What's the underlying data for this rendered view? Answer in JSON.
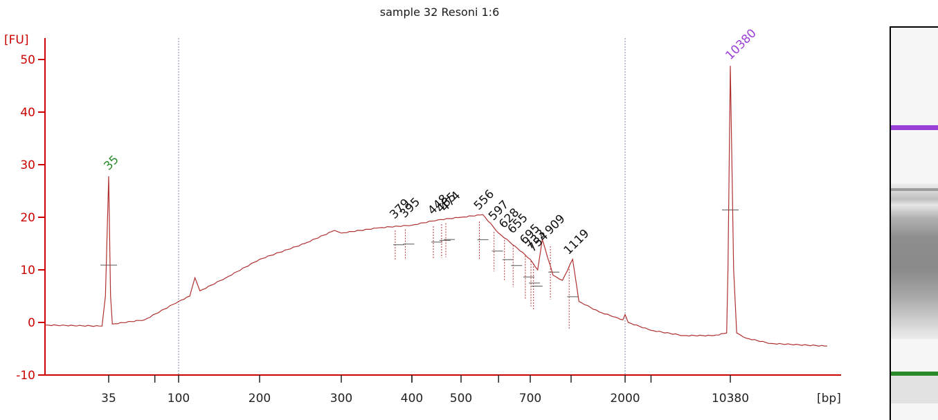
{
  "chart_data": {
    "type": "line",
    "title": "sample 32 Resoni 1:6",
    "ylabel": "[FU]",
    "xlabel": "[bp]",
    "ylim": [
      -10,
      55
    ],
    "yticks": [
      -10,
      0,
      10,
      20,
      30,
      40,
      50
    ],
    "xtick_labels": [
      "35",
      "100",
      "200",
      "300",
      "400",
      "500",
      "700",
      "2000",
      "10380"
    ],
    "colors": {
      "trace": "#b03030",
      "axis": "#cc0000",
      "lower_marker": "#2a8a2a",
      "upper_marker": "#9a3fd8",
      "peak_labels": "#111111"
    },
    "markers": [
      {
        "label": "35",
        "bp": 35,
        "fu": 27.8,
        "color": "#2a8a2a"
      },
      {
        "label": "10380",
        "bp": 10380,
        "fu": 48.8,
        "color": "#9a3fd8"
      }
    ],
    "peaks": [
      {
        "label": "379",
        "bp": 379,
        "fu": 18.8
      },
      {
        "label": "395",
        "bp": 395,
        "fu": 19.0
      },
      {
        "label": "448",
        "bp": 448,
        "fu": 19.6
      },
      {
        "label": "465",
        "bp": 465,
        "fu": 20.0
      },
      {
        "label": "474",
        "bp": 474,
        "fu": 20.2
      },
      {
        "label": "556",
        "bp": 556,
        "fu": 20.5
      },
      {
        "label": "597",
        "bp": 597,
        "fu": 18.5
      },
      {
        "label": "628",
        "bp": 628,
        "fu": 17.0
      },
      {
        "label": "655",
        "bp": 655,
        "fu": 16.0
      },
      {
        "label": "695",
        "bp": 695,
        "fu": 14.0
      },
      {
        "label": "733",
        "bp": 733,
        "fu": 13.0
      },
      {
        "label": "754",
        "bp": 754,
        "fu": 12.5
      },
      {
        "label": "909",
        "bp": 909,
        "fu": 15.8
      },
      {
        "label": "1119",
        "bp": 1119,
        "fu": 12.0
      }
    ],
    "trace_bp": [
      20,
      33,
      34,
      35,
      36,
      37,
      60,
      100,
      110,
      115,
      120,
      150,
      200,
      250,
      290,
      300,
      350,
      400,
      450,
      500,
      556,
      600,
      650,
      700,
      760,
      800,
      900,
      1000,
      1119,
      1200,
      1500,
      1800,
      1950,
      2000,
      2100,
      3000,
      5000,
      8000,
      9800,
      10000,
      10380,
      10700,
      11000,
      12000,
      15000,
      25000
    ],
    "trace_fu": [
      -0.5,
      -0.7,
      5,
      27.8,
      5,
      -0.3,
      0.5,
      4,
      5,
      8.5,
      6,
      8.5,
      12,
      15,
      17.5,
      17,
      18,
      18.5,
      19.5,
      20,
      20.5,
      17,
      14.5,
      12,
      10,
      15.8,
      9,
      8,
      12,
      4,
      2,
      1,
      0.5,
      1.5,
      0,
      -1.5,
      -2.5,
      -2.5,
      -2,
      10,
      48.8,
      10,
      -2,
      -3,
      -4,
      -4.5
    ]
  }
}
